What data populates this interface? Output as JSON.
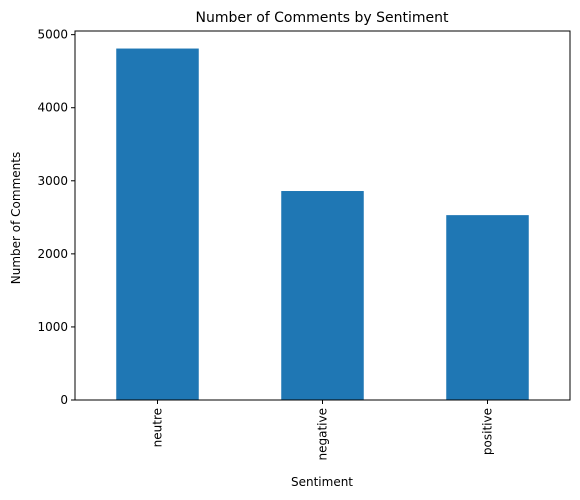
{
  "chart_data": {
    "type": "bar",
    "title": "Number of Comments by Sentiment",
    "xlabel": "Sentiment",
    "ylabel": "Number of Comments",
    "categories": [
      "neutre",
      "negative",
      "positive"
    ],
    "values": [
      4810,
      2860,
      2530
    ],
    "ylim": [
      0,
      5050
    ],
    "yticks": [
      0,
      1000,
      2000,
      3000,
      4000,
      5000
    ],
    "grid": false,
    "bar_color": "#1f77b4"
  }
}
